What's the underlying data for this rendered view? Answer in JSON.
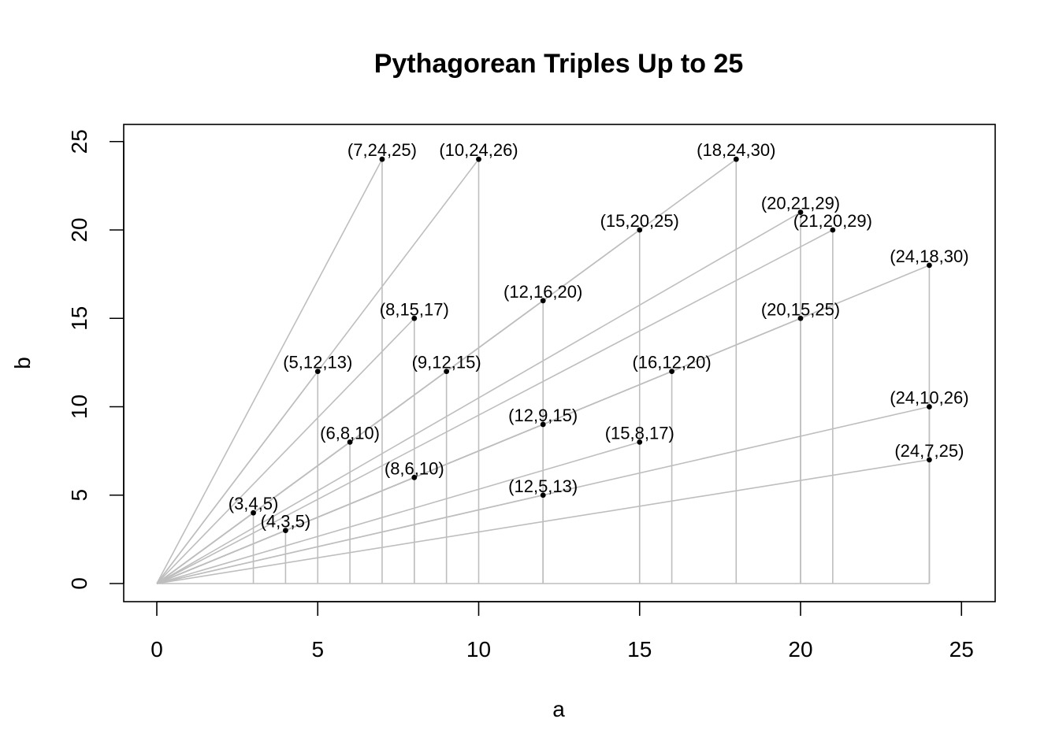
{
  "chart_data": {
    "type": "scatter",
    "title": "Pythagorean Triples Up to 25",
    "xlabel": "a",
    "ylabel": "b",
    "xlim": [
      0,
      25
    ],
    "ylim": [
      0,
      25
    ],
    "xticks": [
      0,
      5,
      10,
      15,
      20,
      25
    ],
    "yticks": [
      0,
      5,
      10,
      15,
      20,
      25
    ],
    "grid": false,
    "colors": {
      "points": "#000000",
      "lines": "#bebebe",
      "frame": "#000000"
    },
    "points": [
      {
        "a": 3,
        "b": 4,
        "label": "(3,4,5)"
      },
      {
        "a": 4,
        "b": 3,
        "label": "(4,3,5)"
      },
      {
        "a": 5,
        "b": 12,
        "label": "(5,12,13)"
      },
      {
        "a": 6,
        "b": 8,
        "label": "(6,8,10)"
      },
      {
        "a": 7,
        "b": 24,
        "label": "(7,24,25)"
      },
      {
        "a": 8,
        "b": 6,
        "label": "(8,6,10)"
      },
      {
        "a": 8,
        "b": 15,
        "label": "(8,15,17)"
      },
      {
        "a": 9,
        "b": 12,
        "label": "(9,12,15)"
      },
      {
        "a": 10,
        "b": 24,
        "label": "(10,24,26)"
      },
      {
        "a": 12,
        "b": 5,
        "label": "(12,5,13)"
      },
      {
        "a": 12,
        "b": 9,
        "label": "(12,9,15)"
      },
      {
        "a": 12,
        "b": 16,
        "label": "(12,16,20)"
      },
      {
        "a": 15,
        "b": 8,
        "label": "(15,8,17)"
      },
      {
        "a": 15,
        "b": 20,
        "label": "(15,20,25)"
      },
      {
        "a": 16,
        "b": 12,
        "label": "(16,12,20)"
      },
      {
        "a": 18,
        "b": 24,
        "label": "(18,24,30)"
      },
      {
        "a": 20,
        "b": 15,
        "label": "(20,15,25)"
      },
      {
        "a": 20,
        "b": 21,
        "label": "(20,21,29)"
      },
      {
        "a": 21,
        "b": 20,
        "label": "(21,20,29)"
      },
      {
        "a": 24,
        "b": 7,
        "label": "(24,7,25)"
      },
      {
        "a": 24,
        "b": 10,
        "label": "(24,10,26)"
      },
      {
        "a": 24,
        "b": 18,
        "label": "(24,18,30)"
      }
    ]
  }
}
